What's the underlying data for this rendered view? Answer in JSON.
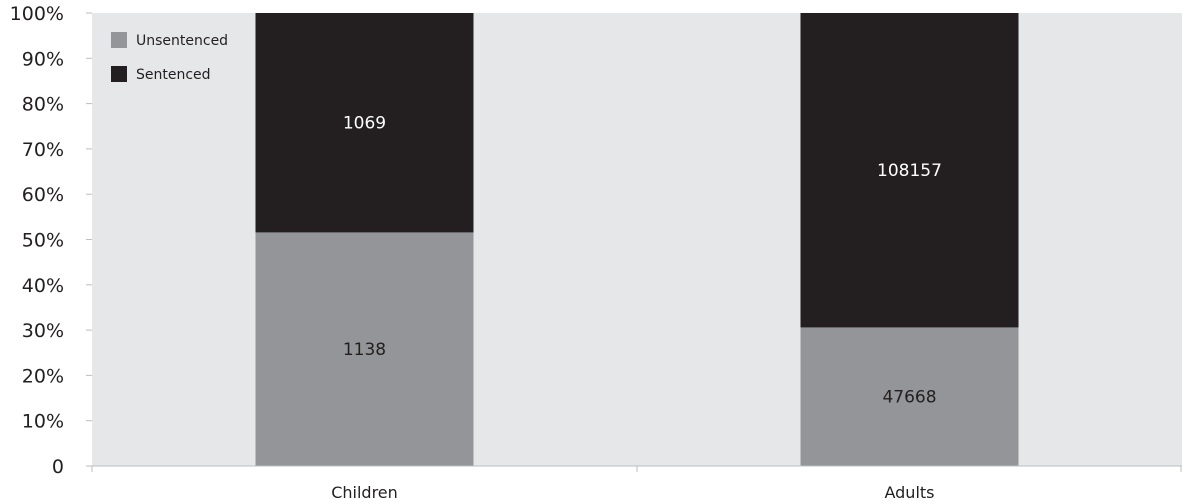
{
  "chart_data": {
    "type": "bar",
    "stacked": true,
    "normalized": true,
    "categories": [
      "Children",
      "Adults"
    ],
    "series": [
      {
        "name": "Unsentenced",
        "values": [
          1138,
          47668
        ],
        "color": "#939598"
      },
      {
        "name": "Sentenced",
        "values": [
          1069,
          108157
        ],
        "color": "#231f20"
      }
    ],
    "y_tick_labels": [
      "0",
      "10%",
      "20%",
      "30%",
      "40%",
      "50%",
      "60%",
      "70%",
      "80%",
      "90%",
      "100%"
    ],
    "ylim": [
      0,
      100
    ],
    "legend_position": "top-left",
    "plot_background": "#e6e7e8",
    "grid": false,
    "title": "",
    "xlabel": "",
    "ylabel": ""
  }
}
